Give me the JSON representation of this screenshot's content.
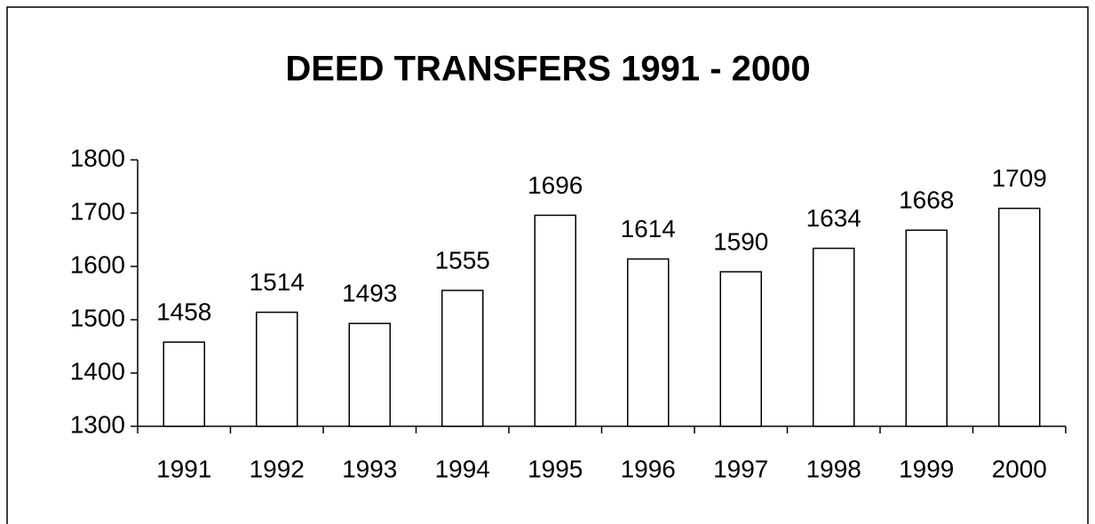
{
  "chart_data": {
    "type": "bar",
    "title": "DEED TRANSFERS 1991 - 2000",
    "categories": [
      "1991",
      "1992",
      "1993",
      "1994",
      "1995",
      "1996",
      "1997",
      "1998",
      "1999",
      "2000"
    ],
    "values": [
      1458,
      1514,
      1493,
      1555,
      1696,
      1614,
      1590,
      1634,
      1668,
      1709
    ],
    "color": "#ffffff",
    "ylim": [
      1300,
      1800
    ],
    "yticks": [
      1300,
      1400,
      1500,
      1600,
      1700,
      1800
    ],
    "grid": false
  }
}
